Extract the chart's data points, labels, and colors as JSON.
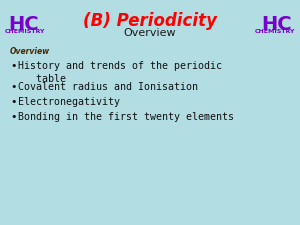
{
  "background_color": "#b2dde2",
  "title": "(B) Periodicity",
  "title_color": "#ff0000",
  "subtitle": "Overview",
  "subtitle_color": "#1a1a1a",
  "section_label": "Overview",
  "section_label_color": "#4a2800",
  "bullet_points": [
    "History and trends of the periodic\n   table",
    "Covalent radius and Ionisation",
    "Electronegativity",
    "Bonding in the first twenty elements"
  ],
  "bullet_color": "#111111",
  "hc_color": "#7700cc",
  "chemistry_color": "#7700cc",
  "logo_hc_size": 14,
  "logo_chemistry_size": 4.5,
  "title_fontsize": 12,
  "subtitle_fontsize": 8,
  "section_label_fontsize": 5.5,
  "bullet_fontsize": 7.2
}
